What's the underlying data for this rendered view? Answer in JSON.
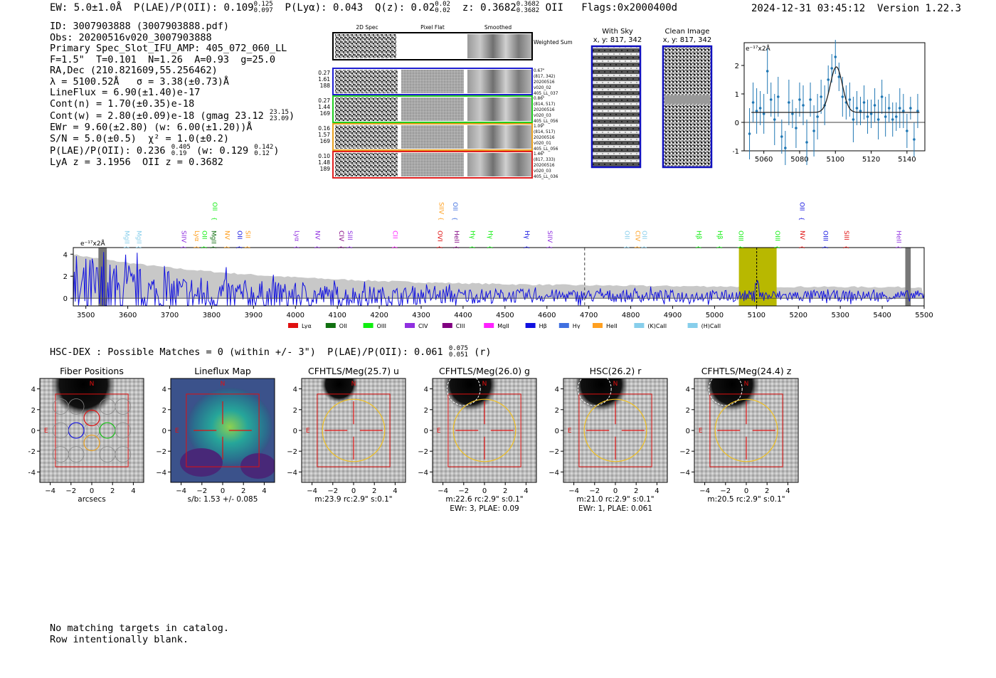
{
  "header": {
    "ew": "EW: 5.0±1.0Å",
    "plae_label": "P(LAE)/P(OII): 0.109",
    "plae_hi": "0.125",
    "plae_lo": "0.097",
    "plya": "P(Lyα): 0.043",
    "qz_label": "Q(z): 0.02",
    "qz_hi": "0.02",
    "qz_lo": "0.02",
    "z_label": "z: 0.3682",
    "z_hi": "0.3682",
    "z_lo": "0.3682",
    "z_line": "OII",
    "flags": "Flags:0x2000400d",
    "timestamp": "2024-12-31 03:45:12",
    "version": "Version 1.22.3"
  },
  "info": {
    "id": "ID: 3007903888 (3007903888.pdf)",
    "obs": "Obs: 20200516v020_3007903888",
    "primary": "Primary Spec_Slot_IFU_AMP: 405_072_060_LL",
    "params": "F=1.5\"  T=0.101  N=1.26  A=0.93  g=25.0",
    "radec": "RA,Dec (210.821609,55.256462)",
    "lambda": "λ = 5100.52Å   σ = 3.38(±0.73)Å",
    "lineflux": "LineFlux = 6.90(±1.40)e-17",
    "cont_n": "Cont(n) = 1.70(±0.35)e-18",
    "cont_w": "Cont(w) = 2.80(±0.09)e-18 (gmag 23.12",
    "gmag_hi": "23.15",
    "gmag_lo": "23.09",
    "ewr": "EWr = 9.60(±2.80) (w: 6.00(±1.20))Å",
    "sn": "S/N = 5.0(±0.5)  χ² = 1.0(±0.2)",
    "plae2": "P(LAE)/P(OII): 0.236",
    "plae2_hi": "0.405",
    "plae2_lo": "0.19",
    "plae2_w": "(w: 0.129",
    "plae2_w_hi": "0.142",
    "plae2_w_lo": "0.12",
    "lya_z": "LyA z = 3.1956  OII z = 0.3682"
  },
  "cutouts": {
    "col_titles": [
      "2D Spec",
      "Pixel Flat",
      "Smoothed"
    ],
    "weighted_sum": "Weighted Sum",
    "rows": [
      {
        "left": [
          "0.27",
          "1.61",
          "188"
        ],
        "right": [
          "0.67\"",
          "(817, 342)",
          "20200516",
          "v020_02",
          "405_LL_037"
        ],
        "color": "#1f1fd0"
      },
      {
        "left": [
          "0.27",
          "1.44",
          "169"
        ],
        "right": [
          "0.86\"",
          "(814, 517)",
          "20200516",
          "v020_03",
          "405_LL_056"
        ],
        "color": "#22cc22"
      },
      {
        "left": [
          "0.16",
          "1.57",
          "169"
        ],
        "right": [
          "1.09\"",
          "(814, 517)",
          "20200516",
          "v020_01",
          "405_LL_056"
        ],
        "color": "#e8a020"
      },
      {
        "left": [
          "0.10",
          "1.48",
          "189"
        ],
        "right": [
          "1.46\"",
          "(817, 333)",
          "20200516",
          "v020_03",
          "405_LL_036"
        ],
        "color": "#e02020"
      }
    ],
    "with_sky_title": "With Sky",
    "with_sky_xy": "x, y: 817, 342",
    "clean_title": "Clean Image",
    "clean_xy": "x, y: 817, 342"
  },
  "zoom_chart": {
    "unit_label": "e⁻¹⁷x2Å"
  },
  "spectrum": {
    "unit_label": "e⁻¹⁷x2Å",
    "legend": [
      {
        "name": "Lyα",
        "color": "#e01010"
      },
      {
        "name": "OII",
        "color": "#107010"
      },
      {
        "name": "OIII",
        "color": "#10ee10"
      },
      {
        "name": "CIV",
        "color": "#9030e0"
      },
      {
        "name": "CIII",
        "color": "#800080"
      },
      {
        "name": "MgII",
        "color": "#ff20ff"
      },
      {
        "name": "Hβ",
        "color": "#1010e0"
      },
      {
        "name": "Hγ",
        "color": "#4070e0"
      },
      {
        "name": "HeII",
        "color": "#ffa020"
      },
      {
        "name": "(K)CaII",
        "color": "#87ceeb"
      },
      {
        "name": "(H)CaII",
        "color": "#87ceeb"
      }
    ]
  },
  "hsc_line": {
    "text": "HSC-DEX : Possible Matches = 0 (within +/- 3\")  P(LAE)/P(OII): 0.061",
    "hi": "0.075",
    "lo": "0.051",
    "band": "(r)"
  },
  "stamps": [
    {
      "title": "Fiber Positions",
      "caption1": "arcsecs",
      "caption2": "",
      "kind": "fiber"
    },
    {
      "title": "Lineflux Map",
      "caption1": "s/b: 1.53 +/- 0.085",
      "caption2": "",
      "kind": "flux"
    },
    {
      "title": "CFHTLS/Meg(25.7) u",
      "caption1": "m:23.9 rc:2.9\"  s:0.1\"",
      "caption2": "",
      "kind": "img"
    },
    {
      "title": "CFHTLS/Meg(26.0) g",
      "caption1": "m:22.6 rc:2.9\"  s:0.1\"",
      "caption2": "EWr: 3, PLAE: 0.09",
      "kind": "img"
    },
    {
      "title": "HSC(26.2) r",
      "caption1": "m:21.0 rc:2.9\"  s:0.1\"",
      "caption2": "EWr: 1, PLAE: 0.061",
      "kind": "img"
    },
    {
      "title": "CFHTLS/Meg(24.4) z",
      "caption1": "m:20.5 rc:2.9\"  s:0.1\"",
      "caption2": "",
      "kind": "img"
    }
  ],
  "stamp_axis": {
    "ticks": [
      "−4",
      "−2",
      "0",
      "2",
      "4"
    ],
    "north": "N",
    "east": "E"
  },
  "footer": {
    "line1": "No matching targets in catalog.",
    "line2": "Row intentionally blank."
  },
  "chart_data": [
    {
      "type": "scatter",
      "title": "",
      "xlabel": "",
      "ylabel": "e⁻¹⁷x2Å",
      "xlim": [
        5049,
        5150
      ],
      "ylim": [
        -1.0,
        2.8
      ],
      "xticks": [
        5060,
        5080,
        5100,
        5120,
        5140
      ],
      "yticks": [
        -1,
        0,
        1,
        2
      ],
      "points": [
        [
          5052,
          -0.4,
          0.9
        ],
        [
          5054,
          0.7,
          0.7
        ],
        [
          5056,
          0.4,
          0.8
        ],
        [
          5058,
          0.5,
          0.6
        ],
        [
          5060,
          0.3,
          0.7
        ],
        [
          5062,
          1.8,
          0.8
        ],
        [
          5064,
          0.8,
          0.6
        ],
        [
          5066,
          0.1,
          0.9
        ],
        [
          5068,
          0.9,
          0.7
        ],
        [
          5070,
          -0.5,
          0.6
        ],
        [
          5072,
          -0.9,
          0.6
        ],
        [
          5074,
          0.7,
          0.8
        ],
        [
          5076,
          0.3,
          0.5
        ],
        [
          5078,
          -0.2,
          0.7
        ],
        [
          5080,
          0.8,
          0.6
        ],
        [
          5082,
          0.6,
          0.7
        ],
        [
          5084,
          -0.7,
          0.8
        ],
        [
          5086,
          0.8,
          0.6
        ],
        [
          5088,
          -0.3,
          0.9
        ],
        [
          5090,
          0.2,
          0.8
        ],
        [
          5092,
          0.9,
          0.6
        ],
        [
          5094,
          0.6,
          0.7
        ],
        [
          5096,
          1.5,
          0.5
        ],
        [
          5098,
          1.9,
          0.5
        ],
        [
          5100,
          2.3,
          0.6
        ],
        [
          5102,
          1.6,
          0.5
        ],
        [
          5104,
          0.9,
          0.7
        ],
        [
          5106,
          0.7,
          0.6
        ],
        [
          5108,
          0.8,
          0.6
        ],
        [
          5110,
          0.1,
          0.8
        ],
        [
          5112,
          0.5,
          0.6
        ],
        [
          5114,
          0.4,
          0.5
        ],
        [
          5116,
          0.7,
          0.6
        ],
        [
          5118,
          0.2,
          0.6
        ],
        [
          5120,
          0.3,
          0.5
        ],
        [
          5122,
          0.6,
          0.6
        ],
        [
          5124,
          0.1,
          0.7
        ],
        [
          5126,
          0.9,
          0.6
        ],
        [
          5128,
          0.2,
          0.7
        ],
        [
          5130,
          0.5,
          0.5
        ],
        [
          5132,
          0.1,
          0.6
        ],
        [
          5134,
          0.2,
          0.5
        ],
        [
          5136,
          0.5,
          0.7
        ],
        [
          5138,
          0.4,
          0.6
        ],
        [
          5140,
          -0.3,
          0.6
        ],
        [
          5142,
          0.5,
          0.4
        ],
        [
          5144,
          -0.6,
          0.6
        ],
        [
          5146,
          0.4,
          0.6
        ]
      ],
      "fit": {
        "center": 5100.52,
        "sigma": 3.38,
        "amplitude": 1.6,
        "continuum": 0.35
      }
    },
    {
      "type": "line",
      "title": "",
      "xlabel": "",
      "ylabel": "e⁻¹⁷x2Å",
      "xlim": [
        3470,
        5500
      ],
      "ylim": [
        -0.7,
        4.6
      ],
      "xticks": [
        3500,
        3600,
        3700,
        3800,
        3900,
        4000,
        4100,
        4200,
        4300,
        4400,
        4500,
        4600,
        4700,
        4800,
        4900,
        5000,
        5100,
        5200,
        5300,
        5400,
        5500
      ],
      "yticks": [
        0,
        2,
        4
      ],
      "highlight_band": [
        5058,
        5148
      ],
      "highlight_color": "#b8b800",
      "marked_line": 5100.5,
      "dashed_line": 4690,
      "shaded_edges": [
        [
          3530,
          3550
        ],
        [
          5455,
          5468
        ]
      ],
      "line_labels": [
        {
          "name": "MgII",
          "x": 3593,
          "color": "#87ceeb",
          "tier": "low"
        },
        {
          "name": "MgII",
          "x": 3622,
          "color": "#87ceeb",
          "tier": "low"
        },
        {
          "name": "SIIV",
          "x": 3729,
          "color": "#9030e0",
          "tier": "low"
        },
        {
          "name": "Lyα",
          "x": 3760,
          "color": "#ffa020",
          "tier": "low"
        },
        {
          "name": "OII",
          "x": 3778,
          "color": "#10ee10",
          "tier": "low"
        },
        {
          "name": "OII",
          "x": 3803,
          "color": "#10ee10",
          "tier": "high"
        },
        {
          "name": "MgII",
          "x": 3800,
          "color": "#107010",
          "tier": "low"
        },
        {
          "name": "NV",
          "x": 3832,
          "color": "#ffa020",
          "tier": "low"
        },
        {
          "name": "OII",
          "x": 3862,
          "color": "#1010e0",
          "tier": "low"
        },
        {
          "name": "SII",
          "x": 3882,
          "color": "#ffa020",
          "tier": "low"
        },
        {
          "name": "Lyα",
          "x": 3999,
          "color": "#9030e0",
          "tier": "low"
        },
        {
          "name": "NV",
          "x": 4048,
          "color": "#9030e0",
          "tier": "low"
        },
        {
          "name": "CIV",
          "x": 4105,
          "color": "#800080",
          "tier": "low"
        },
        {
          "name": "SIII",
          "x": 4125,
          "color": "#9030e0",
          "tier": "low"
        },
        {
          "name": "CII",
          "x": 4233,
          "color": "#ff20ff",
          "tier": "low"
        },
        {
          "name": "SIIV",
          "x": 4343,
          "color": "#ffa020",
          "tier": "high"
        },
        {
          "name": "OII",
          "x": 4376,
          "color": "#4070e0",
          "tier": "high"
        },
        {
          "name": "OVI",
          "x": 4340,
          "color": "#e01010",
          "tier": "low"
        },
        {
          "name": "HeII",
          "x": 4380,
          "color": "#800080",
          "tier": "low"
        },
        {
          "name": "Hγ",
          "x": 4418,
          "color": "#10ee10",
          "tier": "low"
        },
        {
          "name": "Hγ",
          "x": 4460,
          "color": "#10ee10",
          "tier": "low"
        },
        {
          "name": "Hγ",
          "x": 4548,
          "color": "#1010e0",
          "tier": "low"
        },
        {
          "name": "SIIV",
          "x": 4602,
          "color": "#9030e0",
          "tier": "low"
        },
        {
          "name": "OII",
          "x": 4786,
          "color": "#87ceeb",
          "tier": "low"
        },
        {
          "name": "CIV",
          "x": 4812,
          "color": "#ffa020",
          "tier": "low"
        },
        {
          "name": "OII",
          "x": 4828,
          "color": "#87ceeb",
          "tier": "low"
        },
        {
          "name": "Hβ",
          "x": 4958,
          "color": "#10ee10",
          "tier": "low"
        },
        {
          "name": "Hβ",
          "x": 5008,
          "color": "#10ee10",
          "tier": "low"
        },
        {
          "name": "OIII",
          "x": 5058,
          "color": "#10ee10",
          "tier": "low"
        },
        {
          "name": "OIII",
          "x": 5145,
          "color": "#10ee10",
          "tier": "low"
        },
        {
          "name": "OII",
          "x": 5204,
          "color": "#1010e0",
          "tier": "high"
        },
        {
          "name": "NV",
          "x": 5205,
          "color": "#e01010",
          "tier": "low"
        },
        {
          "name": "OIII",
          "x": 5260,
          "color": "#1010e0",
          "tier": "low"
        },
        {
          "name": "SIII",
          "x": 5310,
          "color": "#e01010",
          "tier": "low"
        },
        {
          "name": "HeII",
          "x": 5435,
          "color": "#9030e0",
          "tier": "low"
        }
      ]
    }
  ]
}
